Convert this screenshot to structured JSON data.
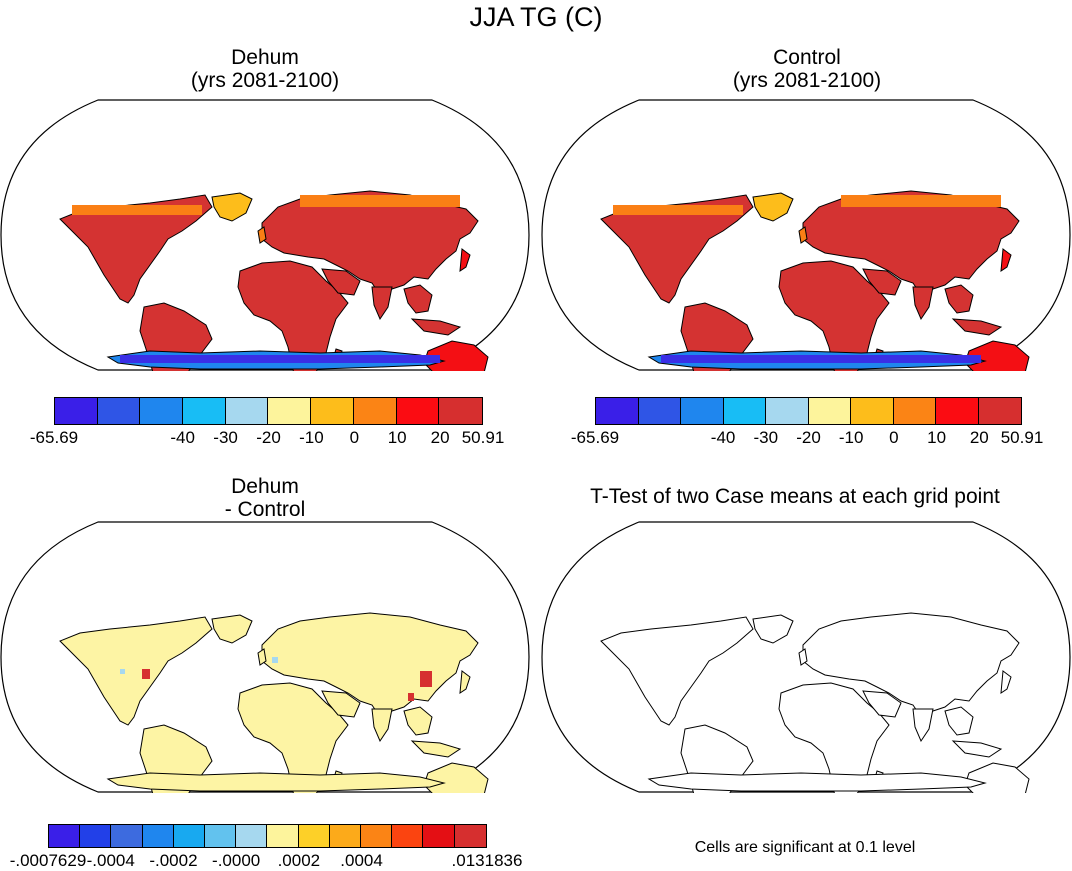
{
  "title": "JJA TG (C)",
  "panels": {
    "dehum": {
      "title_line1": "Dehum",
      "title_line2": "(yrs 2081-2100)"
    },
    "control": {
      "title_line1": "Control",
      "title_line2": "(yrs 2081-2100)"
    },
    "diff": {
      "title_line1": "Dehum",
      "title_line2": "- Control"
    },
    "ttest": {
      "title": "T-Test of two Case means at each grid point",
      "note": "Cells are significant at 0.1 level"
    }
  },
  "colorbar_top": {
    "colors": [
      "#3a1fe8",
      "#2f55e6",
      "#1f86ee",
      "#18bdf5",
      "#a6d8ef",
      "#fdf49c",
      "#fdbd1b",
      "#fb8415",
      "#fb0c12",
      "#d62f2f"
    ],
    "labels": [
      "-65.69",
      "-40",
      "-30",
      "-20",
      "-10",
      "0",
      "10",
      "20",
      "50.91"
    ]
  },
  "colorbar_diff": {
    "colors": [
      "#3a1fe8",
      "#2240e8",
      "#3d6bdf",
      "#1f86ee",
      "#18a9f0",
      "#62c2ee",
      "#a6d8ef",
      "#fdf49c",
      "#fdd028",
      "#fcaa1a",
      "#fb8415",
      "#fb4410",
      "#e40f14",
      "#d62f2f"
    ],
    "labels": [
      "-.0007629",
      "-.0004",
      "-.0002",
      "-.0000",
      ".0002",
      ".0004",
      ".0131836"
    ]
  },
  "map_colors": {
    "hot": "#d43332",
    "warm": "#f40f14",
    "mild": "#fa7f15",
    "cool": "#fdbd1b",
    "pale": "#fdf49c",
    "ice_dark": "#3a2fe6",
    "ice_light": "#1f86ee",
    "diff_land": "#fdf4a4",
    "diff_hot": "#d63030",
    "diff_cool": "#a6d8ef"
  }
}
